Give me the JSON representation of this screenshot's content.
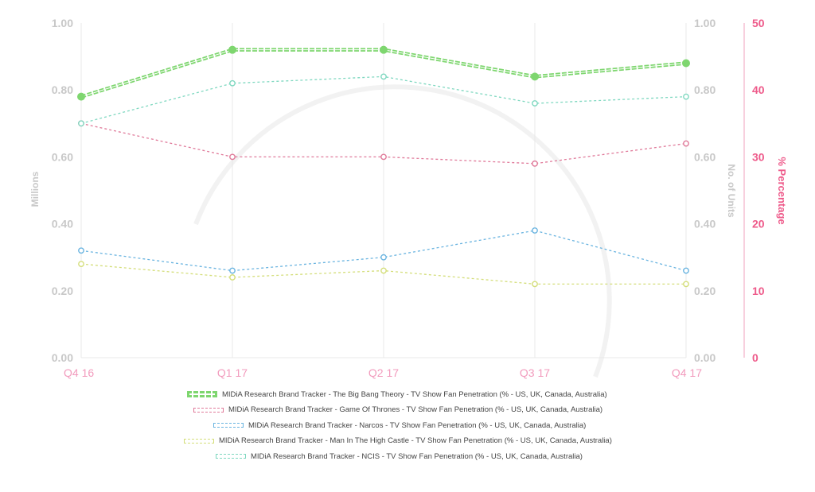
{
  "chart_data": {
    "type": "line",
    "categories": [
      "Q4 16",
      "Q1 17",
      "Q2 17",
      "Q3 17",
      "Q4 17"
    ],
    "y_left": {
      "label": "Millions",
      "ylim": [
        0,
        1
      ],
      "ticks": [
        "0.00",
        "0.20",
        "0.40",
        "0.60",
        "0.80",
        "1.00"
      ]
    },
    "y_right_units": {
      "label": "No. of Units",
      "ylim": [
        0,
        1
      ],
      "ticks": [
        "0.00",
        "0.20",
        "0.40",
        "0.60",
        "0.80",
        "1.00"
      ]
    },
    "y_right_percent": {
      "label": "% Percentage",
      "ylim": [
        0,
        50
      ],
      "ticks": [
        "0",
        "10",
        "20",
        "30",
        "40",
        "50"
      ]
    },
    "grid": "vertical",
    "legend_position": "bottom",
    "series": [
      {
        "name": "MIDiA Research Brand Tracker - The Big Bang Theory - TV Show Fan Penetration (% - US, UK, Canada, Australia)",
        "color": "#7ed66f",
        "values": [
          39,
          46,
          46,
          42,
          44
        ]
      },
      {
        "name": "MIDiA Research Brand Tracker - Game Of Thrones - TV Show Fan Penetration (% - US, UK, Canada, Australia)",
        "color": "#e07a9a",
        "values": [
          35,
          30,
          30,
          29,
          32
        ]
      },
      {
        "name": "MIDiA Research Brand Tracker - Narcos - TV Show Fan Penetration (% - US, UK, Canada, Australia)",
        "color": "#6ab4e0",
        "values": [
          16,
          13,
          15,
          19,
          13
        ]
      },
      {
        "name": "MIDiA Research Brand Tracker - Man In The High Castle - TV Show Fan Penetration (% - US, UK, Canada, Australia)",
        "color": "#d4de7a",
        "values": [
          14,
          12,
          13,
          11,
          11
        ]
      },
      {
        "name": "MIDiA Research Brand Tracker - NCIS - TV Show Fan Penetration (% - US, UK, Canada, Australia)",
        "color": "#7fd8c0",
        "values": [
          35,
          41,
          42,
          38,
          39
        ]
      }
    ]
  },
  "colors": {
    "axis_text": "#c8c8c8",
    "category_text": "#f29bbd",
    "percent_axis": "#ee5a8a",
    "grid": "#e8e8e8"
  }
}
